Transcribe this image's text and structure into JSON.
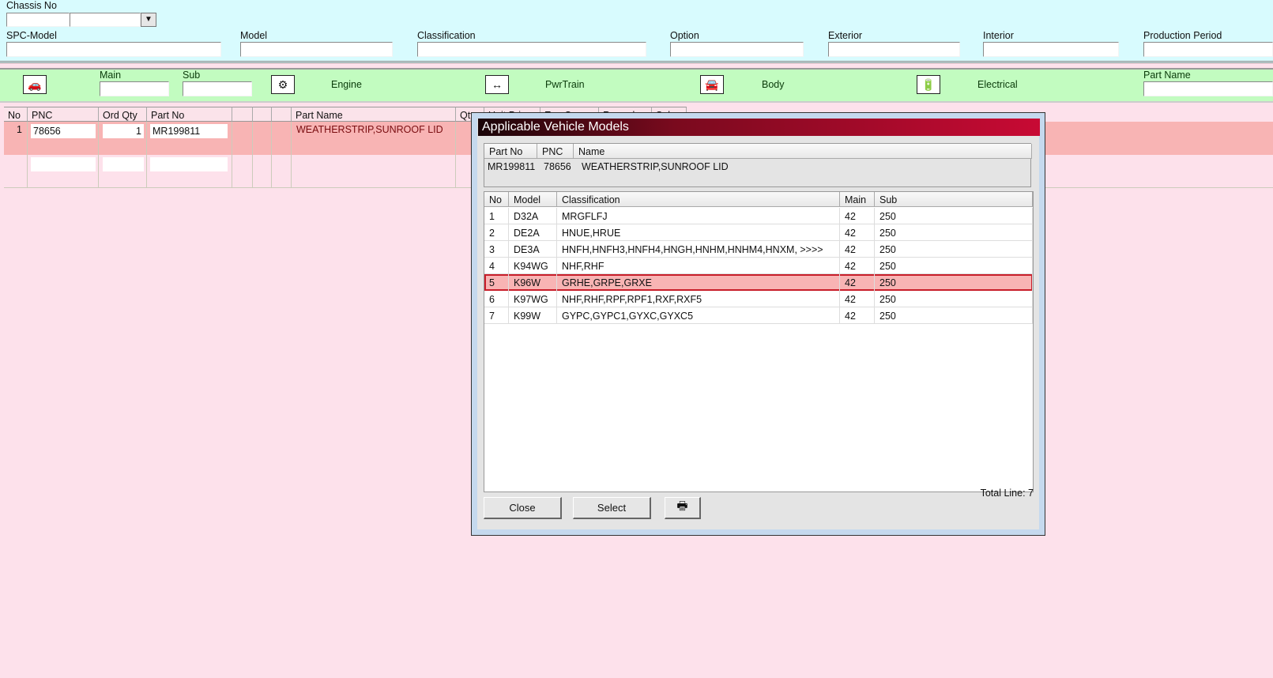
{
  "filters": {
    "chassis_no": "Chassis No",
    "spc_model": "SPC-Model",
    "model": "Model",
    "classification": "Classification",
    "option": "Option",
    "exterior": "Exterior",
    "interior": "Interior",
    "production_period": "Production Period"
  },
  "groups": {
    "main": "Main",
    "sub": "Sub",
    "engine": "Engine",
    "pwrtrain": "PwrTrain",
    "body": "Body",
    "electrical": "Electrical",
    "part_name": "Part Name"
  },
  "table": {
    "headers": [
      "No",
      "PNC",
      "Ord Qty",
      "Part No",
      "",
      "",
      "",
      "Part Name",
      "Qty",
      "Unit Price",
      "Exp Cur",
      "Remarks",
      "Sub"
    ],
    "rows": [
      {
        "no": "1",
        "pnc": "78656",
        "ord_qty": "1",
        "part_no": "MR199811",
        "part_name": "WEATHERSTRIP,SUNROOF LID"
      }
    ]
  },
  "dialog": {
    "title": "Applicable Vehicle Models",
    "info_headers": [
      "Part No",
      "PNC",
      "Name"
    ],
    "info": {
      "part_no": "MR199811",
      "pnc": "78656",
      "name": "WEATHERSTRIP,SUNROOF LID"
    },
    "headers": [
      "No",
      "Model",
      "Classification",
      "Main",
      "Sub"
    ],
    "rows": [
      [
        "1",
        "D32A",
        "MRGFLFJ",
        "42",
        "250"
      ],
      [
        "2",
        "DE2A",
        "HNUE,HRUE",
        "42",
        "250"
      ],
      [
        "3",
        "DE3A",
        "HNFH,HNFH3,HNFH4,HNGH,HNHM,HNHM4,HNXM,  >>>>",
        "42",
        "250"
      ],
      [
        "4",
        "K94WG",
        "NHF,RHF",
        "42",
        "250"
      ],
      [
        "5",
        "K96W",
        "GRHE,GRPE,GRXE",
        "42",
        "250"
      ],
      [
        "6",
        "K97WG",
        "NHF,RHF,RPF,RPF1,RXF,RXF5",
        "42",
        "250"
      ],
      [
        "7",
        "K99W",
        "GYPC,GYPC1,GYXC,GYXC5",
        "42",
        "250"
      ]
    ],
    "selected_row": 5,
    "close": "Close",
    "select": "Select",
    "total": "Total Line: 7"
  },
  "colors": {
    "selected_row": "#f8b4b4",
    "title_bar": "#c80a34",
    "filter_bg": "#d8fbfe",
    "group_bg": "#c2fcc0",
    "list_bg": "#fde1eb"
  }
}
